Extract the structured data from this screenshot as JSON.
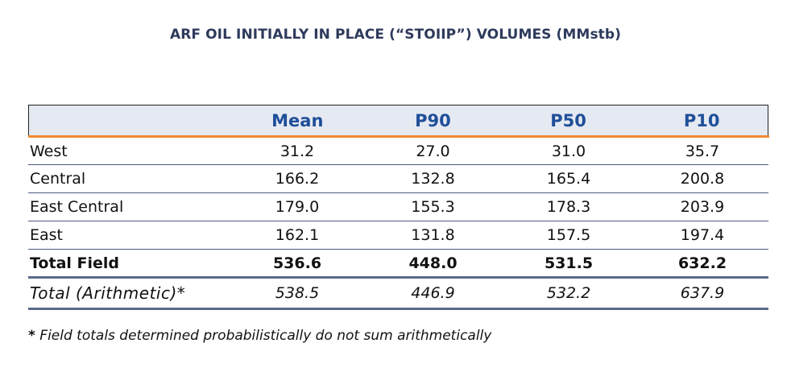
{
  "title": "ARF OIL INITIALLY IN PLACE (“STOIIP”) VOLUMES (MMstb)",
  "table": {
    "columns": [
      "",
      "Mean",
      "P90",
      "P50",
      "P10"
    ],
    "rows": [
      {
        "label": "West",
        "values": [
          "31.2",
          "27.0",
          "31.0",
          "35.7"
        ]
      },
      {
        "label": "Central",
        "values": [
          "166.2",
          "132.8",
          "165.4",
          "200.8"
        ]
      },
      {
        "label": "East Central",
        "values": [
          "179.0",
          "155.3",
          "178.3",
          "203.9"
        ]
      },
      {
        "label": "East",
        "values": [
          "162.1",
          "131.8",
          "157.5",
          "197.4"
        ]
      },
      {
        "label": "Total Field",
        "values": [
          "536.6",
          "448.0",
          "531.5",
          "632.2"
        ]
      },
      {
        "label": "Total (Arithmetic)*",
        "values": [
          "538.5",
          "446.9",
          "532.2",
          "637.9"
        ]
      }
    ]
  },
  "footnote": {
    "star": "*",
    "text": " Field totals determined probabilistically do not sum arithmetically"
  },
  "colors": {
    "title": "#2e3a5c",
    "header_text": "#1f4f98",
    "header_bg": "#e5e9f2",
    "accent_line": "#ef8a2e",
    "row_rule": "#4a5a7e"
  }
}
